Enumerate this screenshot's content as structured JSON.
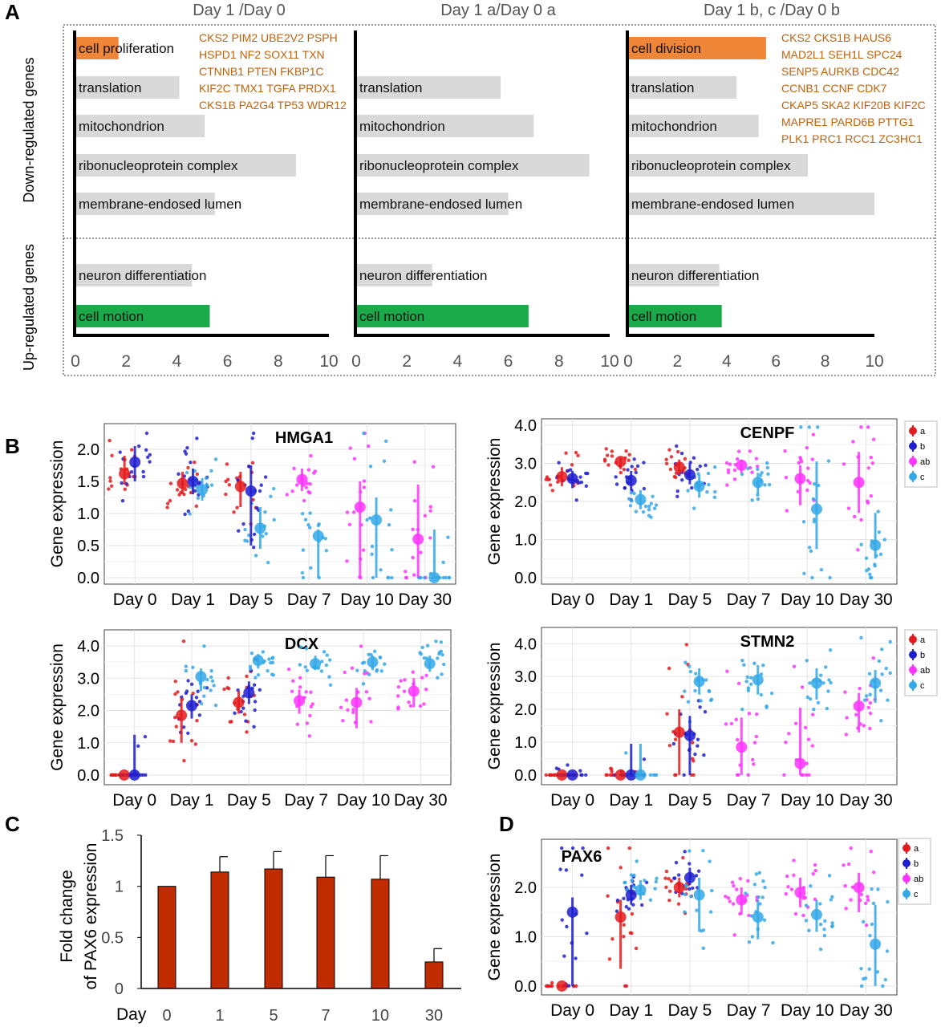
{
  "colors": {
    "a": "#e41a1c",
    "b": "#1f1fd0",
    "ab": "#ff33ff",
    "c": "#33a8e8",
    "bar_gray": "#d9d9d9",
    "bar_orange": "#ef8536",
    "bar_green": "#1aaa4a",
    "gene_text": "#c0620a",
    "pax6_bar": "#c02c00"
  },
  "panel_labels": {
    "A": "A",
    "B": "B",
    "C": "C",
    "D": "D"
  },
  "panel_a": {
    "row_labels": {
      "down": "Down-regulated genes",
      "up": "Up-regulated genes"
    },
    "charts": [
      {
        "title": "Day 1 /Day 0",
        "xlim": [
          0,
          10
        ],
        "ticks": [
          "0",
          "2",
          "4",
          "6",
          "8",
          "10"
        ],
        "bars": [
          {
            "label": "cell proliferation",
            "value": 1.7,
            "style": "orange",
            "group": "down"
          },
          {
            "label": "translation",
            "value": 4.1,
            "style": "gray",
            "group": "down"
          },
          {
            "label": "mitochondrion",
            "value": 5.1,
            "style": "gray",
            "group": "down"
          },
          {
            "label": "ribonucleoprotein complex",
            "value": 8.7,
            "style": "gray",
            "group": "down"
          },
          {
            "label": "membrane-endosed lumen",
            "value": 5.5,
            "style": "gray",
            "group": "down"
          },
          {
            "label": "neuron differentiation",
            "value": 4.6,
            "style": "gray",
            "group": "up"
          },
          {
            "label": "cell motion",
            "value": 5.3,
            "style": "green",
            "group": "up"
          }
        ],
        "gene_list": [
          "CKS2 PIM2 UBE2V2 PSPH",
          "HSPD1 NF2 SOX11 TXN",
          "CTNNB1 PTEN FKBP1C",
          "KIF2C TMX1 TGFA PRDX1",
          "CKS1B PA2G4 TP53 WDR12"
        ]
      },
      {
        "title": "Day 1 a/Day 0 a",
        "xlim": [
          0,
          10
        ],
        "ticks": [
          "0",
          "2",
          "4",
          "6",
          "8",
          "10"
        ],
        "bars": [
          {
            "label": "translation",
            "value": 5.7,
            "style": "gray",
            "group": "down"
          },
          {
            "label": "mitochondrion",
            "value": 7.0,
            "style": "gray",
            "group": "down"
          },
          {
            "label": "ribonucleoprotein complex",
            "value": 9.2,
            "style": "gray",
            "group": "down"
          },
          {
            "label": "membrane-endosed lumen",
            "value": 6.0,
            "style": "gray",
            "group": "down"
          },
          {
            "label": "neuron differentiation",
            "value": 3.0,
            "style": "gray",
            "group": "up"
          },
          {
            "label": "cell motion",
            "value": 6.8,
            "style": "green",
            "group": "up"
          }
        ],
        "gene_list": []
      },
      {
        "title": "Day 1 b, c /Day 0 b",
        "xlim": [
          0,
          10
        ],
        "ticks": [
          "0",
          "2",
          "4",
          "6",
          "8",
          "10"
        ],
        "bars": [
          {
            "label": "cell division",
            "value": 5.6,
            "style": "orange",
            "group": "down"
          },
          {
            "label": "translation",
            "value": 4.4,
            "style": "gray",
            "group": "down"
          },
          {
            "label": "mitochondrion",
            "value": 5.3,
            "style": "gray",
            "group": "down"
          },
          {
            "label": "ribonucleoprotein complex",
            "value": 7.3,
            "style": "gray",
            "group": "down"
          },
          {
            "label": "membrane-endosed lumen",
            "value": 10.0,
            "style": "gray",
            "group": "down"
          },
          {
            "label": "neuron differentiation",
            "value": 3.7,
            "style": "gray",
            "group": "up"
          },
          {
            "label": "cell motion",
            "value": 3.8,
            "style": "green",
            "group": "up"
          }
        ],
        "gene_list": [
          "CKS2 CKS1B HAUS6",
          "MAD2L1 SEH1L SPC24",
          "SENP5 AURKB CDC42",
          "CCNB1 CCNF CDK7",
          "CKAP5 SKA2 KIF20B KIF2C",
          "MAPRE1 PARD6B PTTG1",
          "PLK1 PRC1 RCC1 ZC3HC1"
        ]
      }
    ]
  },
  "scatter_common": {
    "ylabel": "Gene expression",
    "categories": [
      "Day 0",
      "Day 1",
      "Day 5",
      "Day 7",
      "Day 10",
      "Day 30"
    ],
    "legend": [
      "a",
      "b",
      "ab",
      "c"
    ]
  },
  "chart_data": [
    {
      "type": "bar",
      "title": "",
      "categories": [
        "cell proliferation",
        "translation",
        "mitochondrion",
        "ribonucleoprotein complex",
        "membrane-endosed lumen",
        "neuron differentiation",
        "cell motion"
      ],
      "values": [
        1.7,
        4.1,
        5.1,
        8.7,
        5.5,
        4.6,
        5.3
      ],
      "xlim": [
        0,
        10
      ]
    },
    {
      "type": "scatter",
      "title": "HMGA1",
      "ylim": [
        0,
        2.3
      ],
      "yticks": [
        "0.0",
        "0.5",
        "1.0",
        "1.5",
        "2.0"
      ],
      "ytick_values": [
        0,
        0.5,
        1.0,
        1.5,
        2.0
      ],
      "legend": false,
      "means": [
        {
          "day": 0,
          "group": "a",
          "mean": 1.62,
          "lo": 1.45,
          "hi": 1.9
        },
        {
          "day": 0,
          "group": "b",
          "mean": 1.8,
          "lo": 1.5,
          "hi": 2.05
        },
        {
          "day": 1,
          "group": "a",
          "mean": 1.47,
          "lo": 1.3,
          "hi": 1.65
        },
        {
          "day": 1,
          "group": "b",
          "mean": 1.5,
          "lo": 1.3,
          "hi": 1.7
        },
        {
          "day": 1,
          "group": "c",
          "mean": 1.37,
          "lo": 1.2,
          "hi": 1.55
        },
        {
          "day": 5,
          "group": "a",
          "mean": 1.42,
          "lo": 1.1,
          "hi": 1.65
        },
        {
          "day": 5,
          "group": "b",
          "mean": 1.35,
          "lo": 0.5,
          "hi": 1.75
        },
        {
          "day": 5,
          "group": "c",
          "mean": 0.77,
          "lo": 0.45,
          "hi": 1.1
        },
        {
          "day": 7,
          "group": "ab",
          "mean": 1.53,
          "lo": 1.35,
          "hi": 1.7
        },
        {
          "day": 7,
          "group": "c",
          "mean": 0.65,
          "lo": 0.0,
          "hi": 0.75
        },
        {
          "day": 10,
          "group": "ab",
          "mean": 1.1,
          "lo": 0.0,
          "hi": 1.5
        },
        {
          "day": 10,
          "group": "c",
          "mean": 0.9,
          "lo": 0.0,
          "hi": 1.25
        },
        {
          "day": 30,
          "group": "ab",
          "mean": 0.6,
          "lo": 0.0,
          "hi": 1.45
        },
        {
          "day": 30,
          "group": "c",
          "mean": 0.0,
          "lo": 0.0,
          "hi": 0.75
        }
      ]
    },
    {
      "type": "scatter",
      "title": "CENPF",
      "ylim": [
        0,
        4.0
      ],
      "yticks": [
        "0.0",
        "1.0",
        "2.0",
        "3.0",
        "4.0"
      ],
      "ytick_values": [
        0,
        1,
        2,
        3,
        4
      ],
      "legend": true,
      "means": [
        {
          "day": 0,
          "group": "a",
          "mean": 2.65,
          "lo": 2.4,
          "hi": 2.9
        },
        {
          "day": 0,
          "group": "b",
          "mean": 2.6,
          "lo": 2.35,
          "hi": 2.8
        },
        {
          "day": 1,
          "group": "a",
          "mean": 3.05,
          "lo": 2.85,
          "hi": 3.15
        },
        {
          "day": 1,
          "group": "b",
          "mean": 2.55,
          "lo": 2.3,
          "hi": 2.8
        },
        {
          "day": 1,
          "group": "c",
          "mean": 2.05,
          "lo": 1.8,
          "hi": 2.3
        },
        {
          "day": 5,
          "group": "a",
          "mean": 2.9,
          "lo": 2.7,
          "hi": 3.1
        },
        {
          "day": 5,
          "group": "b",
          "mean": 2.7,
          "lo": 2.45,
          "hi": 3.0
        },
        {
          "day": 5,
          "group": "c",
          "mean": 2.4,
          "lo": 2.1,
          "hi": 2.7
        },
        {
          "day": 7,
          "group": "ab",
          "mean": 2.95,
          "lo": 2.75,
          "hi": 3.1
        },
        {
          "day": 7,
          "group": "c",
          "mean": 2.5,
          "lo": 2.2,
          "hi": 2.75
        },
        {
          "day": 10,
          "group": "ab",
          "mean": 2.6,
          "lo": 1.9,
          "hi": 2.95
        },
        {
          "day": 10,
          "group": "c",
          "mean": 1.8,
          "lo": 0.75,
          "hi": 3.05
        },
        {
          "day": 30,
          "group": "ab",
          "mean": 2.5,
          "lo": 1.7,
          "hi": 3.3
        },
        {
          "day": 30,
          "group": "c",
          "mean": 0.85,
          "lo": 0.5,
          "hi": 1.7
        }
      ]
    },
    {
      "type": "scatter",
      "title": "DCX",
      "ylim": [
        -0.1,
        4.3
      ],
      "yticks": [
        "0.0",
        "1.0",
        "2.0",
        "3.0",
        "4.0"
      ],
      "ytick_values": [
        0,
        1,
        2,
        3,
        4
      ],
      "legend": false,
      "means": [
        {
          "day": 0,
          "group": "a",
          "mean": 0.0,
          "lo": 0.0,
          "hi": 0.0
        },
        {
          "day": 0,
          "group": "b",
          "mean": 0.0,
          "lo": 0.0,
          "hi": 1.25
        },
        {
          "day": 1,
          "group": "a",
          "mean": 1.85,
          "lo": 1.0,
          "hi": 2.4
        },
        {
          "day": 1,
          "group": "b",
          "mean": 2.15,
          "lo": 1.75,
          "hi": 2.5
        },
        {
          "day": 1,
          "group": "c",
          "mean": 3.05,
          "lo": 2.6,
          "hi": 3.3
        },
        {
          "day": 5,
          "group": "a",
          "mean": 2.25,
          "lo": 1.9,
          "hi": 2.6
        },
        {
          "day": 5,
          "group": "b",
          "mean": 2.55,
          "lo": 2.2,
          "hi": 2.9
        },
        {
          "day": 5,
          "group": "c",
          "mean": 3.55,
          "lo": 3.3,
          "hi": 3.75
        },
        {
          "day": 7,
          "group": "ab",
          "mean": 2.3,
          "lo": 1.9,
          "hi": 2.65
        },
        {
          "day": 7,
          "group": "c",
          "mean": 3.45,
          "lo": 3.25,
          "hi": 3.7
        },
        {
          "day": 10,
          "group": "ab",
          "mean": 2.25,
          "lo": 1.45,
          "hi": 2.7
        },
        {
          "day": 10,
          "group": "c",
          "mean": 3.5,
          "lo": 3.25,
          "hi": 3.7
        },
        {
          "day": 30,
          "group": "ab",
          "mean": 2.6,
          "lo": 2.1,
          "hi": 3.0
        },
        {
          "day": 30,
          "group": "c",
          "mean": 3.45,
          "lo": 3.2,
          "hi": 3.7
        }
      ]
    },
    {
      "type": "scatter",
      "title": "STMN2",
      "ylim": [
        -0.1,
        4.3
      ],
      "yticks": [
        "0.0",
        "1.0",
        "2.0",
        "3.0",
        "4.0"
      ],
      "ytick_values": [
        0,
        1,
        2,
        3,
        4
      ],
      "legend": true,
      "means": [
        {
          "day": 0,
          "group": "a",
          "mean": 0.0,
          "lo": 0.0,
          "hi": 0.0
        },
        {
          "day": 0,
          "group": "b",
          "mean": 0.0,
          "lo": 0.0,
          "hi": 0.0
        },
        {
          "day": 1,
          "group": "a",
          "mean": 0.0,
          "lo": 0.0,
          "hi": 0.0
        },
        {
          "day": 1,
          "group": "b",
          "mean": 0.0,
          "lo": 0.0,
          "hi": 0.95
        },
        {
          "day": 1,
          "group": "c",
          "mean": 0.0,
          "lo": 0.0,
          "hi": 0.95
        },
        {
          "day": 5,
          "group": "a",
          "mean": 1.3,
          "lo": 0.0,
          "hi": 2.0
        },
        {
          "day": 5,
          "group": "b",
          "mean": 1.2,
          "lo": 0.0,
          "hi": 1.8
        },
        {
          "day": 5,
          "group": "c",
          "mean": 2.85,
          "lo": 2.45,
          "hi": 3.25
        },
        {
          "day": 7,
          "group": "ab",
          "mean": 0.85,
          "lo": 0.0,
          "hi": 1.75
        },
        {
          "day": 7,
          "group": "c",
          "mean": 2.9,
          "lo": 2.45,
          "hi": 3.35
        },
        {
          "day": 10,
          "group": "ab",
          "mean": 0.35,
          "lo": 0.0,
          "hi": 2.05
        },
        {
          "day": 10,
          "group": "c",
          "mean": 2.8,
          "lo": 2.3,
          "hi": 3.25
        },
        {
          "day": 30,
          "group": "ab",
          "mean": 2.1,
          "lo": 1.3,
          "hi": 2.5
        },
        {
          "day": 30,
          "group": "c",
          "mean": 2.8,
          "lo": 2.2,
          "hi": 3.2
        }
      ]
    },
    {
      "type": "bar",
      "title": "",
      "ylabel": "Fold change\nof PAX6 expression",
      "xlabel": "Day",
      "categories": [
        "0",
        "1",
        "5",
        "7",
        "10",
        "30"
      ],
      "values": [
        1.0,
        1.14,
        1.17,
        1.09,
        1.07,
        0.26
      ],
      "errors": [
        0.0,
        0.15,
        0.17,
        0.21,
        0.23,
        0.13
      ],
      "ylim": [
        0,
        1.5
      ],
      "yticks": [
        "0",
        "0.5",
        "1",
        "1.5"
      ]
    },
    {
      "type": "scatter",
      "title": "PAX6",
      "ylim": [
        -0.05,
        2.85
      ],
      "yticks": [
        "0.0",
        "1.0",
        "2.0"
      ],
      "ytick_values": [
        0,
        1,
        2
      ],
      "legend": true,
      "means": [
        {
          "day": 0,
          "group": "a",
          "mean": 0.0,
          "lo": 0.0,
          "hi": 0.0
        },
        {
          "day": 0,
          "group": "b",
          "mean": 1.5,
          "lo": 0.0,
          "hi": 1.8
        },
        {
          "day": 1,
          "group": "a",
          "mean": 1.4,
          "lo": 0.35,
          "hi": 1.75
        },
        {
          "day": 1,
          "group": "b",
          "mean": 1.85,
          "lo": 1.65,
          "hi": 2.05
        },
        {
          "day": 1,
          "group": "c",
          "mean": 1.95,
          "lo": 1.75,
          "hi": 2.15
        },
        {
          "day": 5,
          "group": "a",
          "mean": 2.0,
          "lo": 1.8,
          "hi": 2.2
        },
        {
          "day": 5,
          "group": "b",
          "mean": 2.2,
          "lo": 2.05,
          "hi": 2.4
        },
        {
          "day": 5,
          "group": "c",
          "mean": 1.85,
          "lo": 1.1,
          "hi": 2.2
        },
        {
          "day": 7,
          "group": "ab",
          "mean": 1.75,
          "lo": 1.45,
          "hi": 2.0
        },
        {
          "day": 7,
          "group": "c",
          "mean": 1.4,
          "lo": 0.95,
          "hi": 1.75
        },
        {
          "day": 10,
          "group": "ab",
          "mean": 1.9,
          "lo": 1.6,
          "hi": 2.2
        },
        {
          "day": 10,
          "group": "c",
          "mean": 1.45,
          "lo": 1.1,
          "hi": 1.75
        },
        {
          "day": 30,
          "group": "ab",
          "mean": 2.0,
          "lo": 1.5,
          "hi": 2.3
        },
        {
          "day": 30,
          "group": "c",
          "mean": 0.85,
          "lo": 0.0,
          "hi": 1.65
        }
      ]
    }
  ]
}
